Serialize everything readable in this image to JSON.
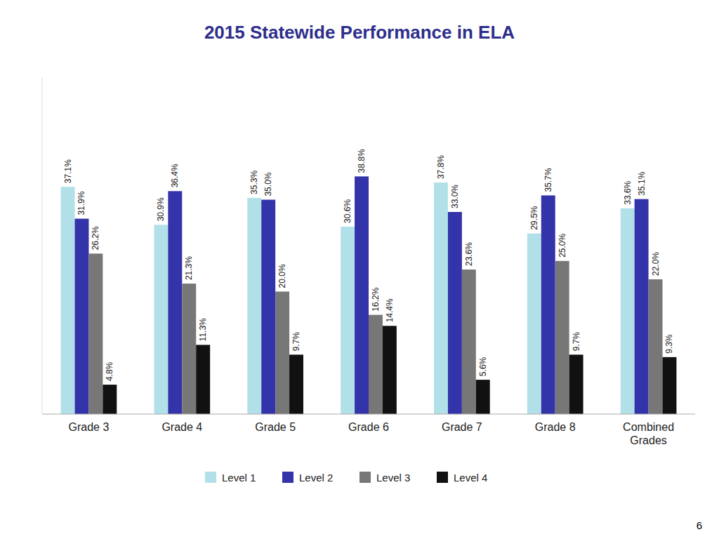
{
  "chart_data": {
    "type": "bar",
    "title": "2015 Statewide Performance in ELA",
    "title_color": "#2E2E8B",
    "categories": [
      "Grade 3",
      "Grade 4",
      "Grade 5",
      "Grade 6",
      "Grade 7",
      "Grade 8",
      "Combined\nGrades"
    ],
    "series": [
      {
        "name": "Level 1",
        "color": "#B2E0E8",
        "values": [
          37.1,
          30.9,
          35.3,
          30.6,
          37.8,
          29.5,
          33.6
        ],
        "value_labels": [
          "37.1%",
          "30.9%",
          "35.3%",
          "30.6%",
          "37.8%",
          "29.5%",
          "33.6%"
        ]
      },
      {
        "name": "Level 2",
        "color": "#3333AA",
        "values": [
          31.9,
          36.4,
          35.0,
          38.8,
          33.0,
          35.7,
          35.1
        ],
        "value_labels": [
          "31.9%",
          "36.4%",
          "35.0%",
          "38.8%",
          "33.0%",
          "35.7%",
          "35.1%"
        ]
      },
      {
        "name": "Level 3",
        "color": "#777777",
        "values": [
          26.2,
          21.3,
          20.0,
          16.2,
          23.6,
          25.0,
          22.0
        ],
        "value_labels": [
          "26.2%",
          "21.3%",
          "20.0%",
          "16.2%",
          "23.6%",
          "25.0%",
          "22.0%"
        ]
      },
      {
        "name": "Level 4",
        "color": "#111111",
        "values": [
          4.8,
          11.3,
          9.7,
          14.4,
          5.6,
          9.7,
          9.3
        ],
        "value_labels": [
          "4.8%",
          "11.3%",
          "9.7%",
          "14.4%",
          "5.6%",
          "9.7%",
          "9.3%"
        ]
      }
    ],
    "ylim": [
      0,
      55
    ],
    "tick_labels": "x",
    "data_labels": true,
    "grid": false,
    "legend": "bottom",
    "annotations": [
      "6"
    ]
  }
}
